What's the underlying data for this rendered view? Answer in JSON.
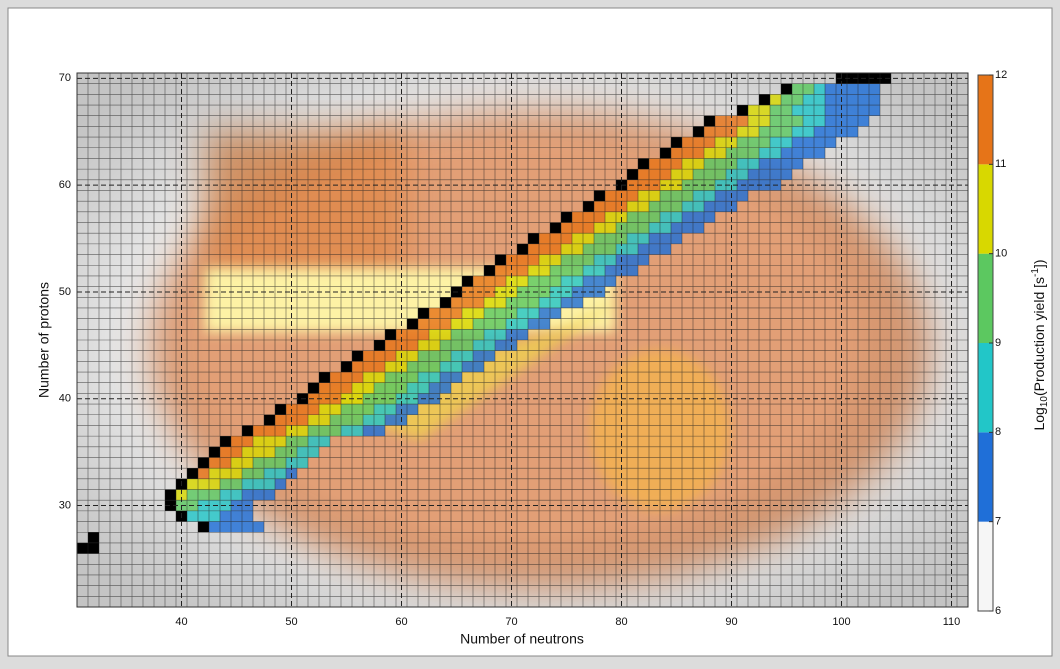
{
  "chart_data": {
    "type": "heatmap",
    "x_label": "Number of neutrons",
    "y_label": "Number of protons",
    "xlim": [
      30.5,
      111.5
    ],
    "ylim": [
      20.5,
      70.5
    ],
    "xticks": [
      40,
      50,
      60,
      70,
      80,
      90,
      100,
      110
    ],
    "yticks": [
      30,
      40,
      50,
      60,
      70
    ],
    "grid": true,
    "colorbar": {
      "label_parts": [
        "Log",
        "10",
        "(Production yield [s",
        "-1",
        "])"
      ],
      "lim": [
        6,
        12
      ],
      "ticks": [
        6,
        7,
        8,
        9,
        10,
        11,
        12
      ],
      "colors": [
        "#f6f6f6",
        "#1f6fd8",
        "#22c6c8",
        "#5cc860",
        "#d8d800",
        "#e67418"
      ]
    },
    "black_cells": {
      "color": "#000000",
      "n": [
        31,
        32,
        32,
        42,
        40,
        39,
        39,
        40,
        41,
        42,
        43,
        44,
        46,
        48,
        49,
        51,
        52,
        53,
        55,
        56,
        58,
        59,
        61,
        62,
        64,
        65,
        66,
        68,
        69,
        71,
        72,
        74,
        75,
        77,
        78,
        80,
        81,
        82,
        84,
        85,
        87,
        88,
        91,
        93,
        95,
        100,
        101,
        102,
        103,
        104
      ],
      "z": [
        26,
        26,
        27,
        28,
        29,
        30,
        31,
        32,
        33,
        34,
        35,
        36,
        37,
        38,
        39,
        40,
        41,
        42,
        43,
        44,
        45,
        46,
        47,
        48,
        49,
        50,
        51,
        52,
        53,
        54,
        55,
        56,
        57,
        58,
        59,
        60,
        61,
        62,
        63,
        64,
        65,
        66,
        67,
        68,
        69,
        70,
        70,
        70,
        70,
        70
      ]
    },
    "rows": [
      {
        "z": 28,
        "n_start": 43,
        "values": [
          7.8,
          7.5,
          7.3,
          7.1,
          7.4
        ]
      },
      {
        "z": 29,
        "n_start": 41,
        "values": [
          8.6,
          8.3,
          8,
          7.7,
          7.4,
          7.2
        ]
      },
      {
        "z": 30,
        "n_start": 40,
        "values": [
          9.5,
          9.2,
          8.8,
          8.4,
          8,
          7.6,
          7.3
        ]
      },
      {
        "z": 31,
        "n_start": 40,
        "values": [
          10.3,
          9.9,
          9.5,
          9.1,
          8.7,
          8.3,
          7.9,
          7.5,
          7.2
        ]
      },
      {
        "z": 32,
        "n_start": 41,
        "values": [
          10.8,
          10.4,
          10,
          9.6,
          9.2,
          8.8,
          8.4,
          8,
          7.6
        ]
      },
      {
        "z": 33,
        "n_start": 42,
        "values": [
          11.2,
          10.8,
          10.4,
          10,
          9.6,
          9.2,
          8.8,
          8.4,
          7.9
        ]
      },
      {
        "z": 34,
        "n_start": 43,
        "values": [
          11.5,
          11.1,
          10.7,
          10.3,
          9.9,
          9.5,
          9.1,
          8.7,
          8.2
        ]
      },
      {
        "z": 35,
        "n_start": 44,
        "values": [
          11.6,
          11.2,
          10.8,
          10.4,
          10,
          9.6,
          9.2,
          8.7,
          8.2
        ]
      },
      {
        "z": 36,
        "n_start": 45,
        "values": [
          11.7,
          11.3,
          10.9,
          10.5,
          10.1,
          9.7,
          9.3,
          8.8,
          8.3
        ]
      },
      {
        "z": 37,
        "n_start": 47,
        "values": [
          11.7,
          11.4,
          11,
          10.6,
          10.2,
          9.8,
          9.4,
          9,
          8.6,
          8.2,
          7.8,
          7.3
        ]
      },
      {
        "z": 38,
        "n_start": 49,
        "values": [
          11.7,
          11.4,
          11,
          10.6,
          10.2,
          9.8,
          9.4,
          9,
          8.6,
          8.2,
          7.8,
          7.3
        ]
      },
      {
        "z": 39,
        "n_start": 50,
        "values": [
          11.7,
          11.4,
          11,
          10.6,
          10.2,
          9.8,
          9.4,
          9,
          8.6,
          8.2,
          7.8,
          7.3
        ]
      },
      {
        "z": 40,
        "n_start": 52,
        "values": [
          11.7,
          11.4,
          11,
          10.6,
          10.2,
          9.8,
          9.4,
          9,
          8.6,
          8.2,
          7.8,
          7.3
        ]
      },
      {
        "z": 41,
        "n_start": 53,
        "values": [
          11.7,
          11.4,
          11,
          10.6,
          10.2,
          9.8,
          9.4,
          9,
          8.6,
          8.2,
          7.8,
          7.3
        ]
      },
      {
        "z": 42,
        "n_start": 54,
        "values": [
          11.7,
          11.4,
          11,
          10.6,
          10.2,
          9.8,
          9.4,
          9,
          8.6,
          8.2,
          7.8,
          7.3
        ]
      },
      {
        "z": 43,
        "n_start": 56,
        "values": [
          11.7,
          11.4,
          11,
          10.6,
          10.2,
          9.8,
          9.4,
          9,
          8.6,
          8.2,
          7.8,
          7.3
        ]
      },
      {
        "z": 44,
        "n_start": 57,
        "values": [
          11.7,
          11.4,
          11,
          10.6,
          10.2,
          9.8,
          9.4,
          9,
          8.6,
          8.2,
          7.8,
          7.3
        ]
      },
      {
        "z": 45,
        "n_start": 59,
        "values": [
          11.7,
          11.4,
          11,
          10.6,
          10.2,
          9.8,
          9.4,
          9,
          8.6,
          8.2,
          7.8,
          7.3
        ]
      },
      {
        "z": 46,
        "n_start": 60,
        "values": [
          11.7,
          11.4,
          11,
          10.6,
          10.2,
          9.8,
          9.4,
          9,
          8.6,
          8.2,
          7.8,
          7.3
        ]
      },
      {
        "z": 47,
        "n_start": 62,
        "values": [
          11.7,
          11.4,
          11,
          10.6,
          10.2,
          9.8,
          9.4,
          9,
          8.6,
          8.2,
          7.8,
          7.3
        ]
      },
      {
        "z": 48,
        "n_start": 63,
        "values": [
          11.7,
          11.4,
          11,
          10.6,
          10.2,
          9.8,
          9.4,
          9,
          8.6,
          8.2,
          7.8,
          7.3
        ]
      },
      {
        "z": 49,
        "n_start": 65,
        "values": [
          11.7,
          11.4,
          11,
          10.6,
          10.2,
          9.8,
          9.4,
          9,
          8.6,
          8.2,
          7.8,
          7.3
        ]
      },
      {
        "z": 50,
        "n_start": 66,
        "values": [
          11.8,
          11.5,
          11.1,
          10.7,
          10.3,
          9.9,
          9.5,
          9.1,
          8.7,
          8.3,
          7.9,
          7.5,
          7.2
        ]
      },
      {
        "z": 51,
        "n_start": 67,
        "values": [
          11.8,
          11.5,
          11.1,
          10.7,
          10.3,
          9.9,
          9.5,
          9.1,
          8.7,
          8.3,
          7.9,
          7.5,
          7.2
        ]
      },
      {
        "z": 52,
        "n_start": 69,
        "values": [
          11.8,
          11.5,
          11.1,
          10.7,
          10.3,
          9.9,
          9.5,
          9.1,
          8.7,
          8.3,
          7.9,
          7.5,
          7.2
        ]
      },
      {
        "z": 53,
        "n_start": 70,
        "values": [
          11.8,
          11.5,
          11.1,
          10.7,
          10.3,
          9.9,
          9.5,
          9.1,
          8.7,
          8.3,
          7.9,
          7.5,
          7.2
        ]
      },
      {
        "z": 54,
        "n_start": 72,
        "values": [
          11.8,
          11.5,
          11.1,
          10.7,
          10.3,
          9.9,
          9.5,
          9.1,
          8.7,
          8.3,
          7.9,
          7.5,
          7.2
        ]
      },
      {
        "z": 55,
        "n_start": 73,
        "values": [
          11.8,
          11.5,
          11.1,
          10.7,
          10.3,
          9.9,
          9.5,
          9.1,
          8.7,
          8.3,
          7.9,
          7.5,
          7.2
        ]
      },
      {
        "z": 56,
        "n_start": 75,
        "values": [
          11.8,
          11.5,
          11.1,
          10.7,
          10.3,
          9.9,
          9.5,
          9.1,
          8.7,
          8.3,
          7.9,
          7.5,
          7.2
        ]
      },
      {
        "z": 57,
        "n_start": 76,
        "values": [
          11.8,
          11.5,
          11.1,
          10.7,
          10.3,
          9.9,
          9.5,
          9.1,
          8.7,
          8.3,
          7.9,
          7.5,
          7.2
        ]
      },
      {
        "z": 58,
        "n_start": 78,
        "values": [
          11.8,
          11.5,
          11.1,
          10.7,
          10.3,
          9.9,
          9.5,
          9.1,
          8.7,
          8.3,
          7.9,
          7.5,
          7.2
        ]
      },
      {
        "z": 59,
        "n_start": 79,
        "values": [
          11.8,
          11.5,
          11.1,
          10.7,
          10.3,
          9.9,
          9.5,
          9.1,
          8.7,
          8.3,
          7.9,
          7.5,
          7.2
        ]
      },
      {
        "z": 60,
        "n_start": 81,
        "values": [
          11.6,
          11.3,
          11,
          10.6,
          10.2,
          9.8,
          9.4,
          9,
          8.6,
          8.2,
          7.9,
          7.6,
          7.3,
          7.1
        ]
      },
      {
        "z": 61,
        "n_start": 82,
        "values": [
          11.6,
          11.3,
          11,
          10.6,
          10.2,
          9.8,
          9.4,
          9,
          8.6,
          8.2,
          7.9,
          7.6,
          7.3,
          7.1
        ]
      },
      {
        "z": 62,
        "n_start": 83,
        "values": [
          11.6,
          11.3,
          11,
          10.6,
          10.2,
          9.8,
          9.4,
          9,
          8.6,
          8.2,
          7.9,
          7.6,
          7.3,
          7.1
        ]
      },
      {
        "z": 63,
        "n_start": 85,
        "values": [
          11.6,
          11.3,
          11,
          10.6,
          10.2,
          9.8,
          9.4,
          9,
          8.6,
          8.2,
          7.9,
          7.6,
          7.3,
          7.1
        ]
      },
      {
        "z": 64,
        "n_start": 86,
        "values": [
          11.6,
          11.3,
          11,
          10.6,
          10.2,
          9.8,
          9.4,
          9,
          8.6,
          8.2,
          7.9,
          7.6,
          7.3,
          7.1
        ]
      },
      {
        "z": 65,
        "n_start": 88,
        "values": [
          11.6,
          11.3,
          11,
          10.6,
          10.2,
          9.8,
          9.4,
          9,
          8.6,
          8.2,
          7.9,
          7.6,
          7.3,
          7.1
        ]
      },
      {
        "z": 66,
        "n_start": 89,
        "values": [
          11.6,
          11.3,
          11,
          10.6,
          10.2,
          9.8,
          9.4,
          9,
          8.6,
          8.2,
          7.9,
          7.6,
          7.3,
          7.1
        ]
      },
      {
        "z": 67,
        "n_start": 92,
        "values": [
          10.5,
          10,
          9.6,
          9.2,
          8.8,
          8.4,
          8,
          7.7,
          7.4,
          7.2,
          7.1,
          7.3
        ]
      },
      {
        "z": 68,
        "n_start": 94,
        "values": [
          10.2,
          9.6,
          9,
          8.5,
          8,
          7.6,
          7.3,
          7.1,
          7.2,
          7.5
        ]
      },
      {
        "z": 69,
        "n_start": 96,
        "values": [
          9.6,
          9,
          8.4,
          7.9,
          7.5,
          7.2,
          7.1,
          7.3
        ]
      }
    ]
  }
}
